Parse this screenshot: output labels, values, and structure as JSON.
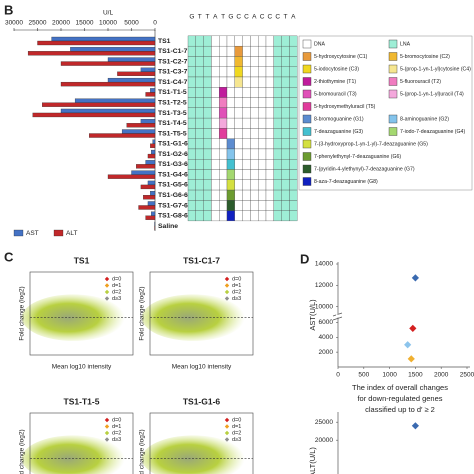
{
  "panel_b": {
    "label": "B",
    "type": "bar",
    "axis_title": "U/L",
    "xlim": [
      0,
      30000
    ],
    "xticks": [
      30000,
      25000,
      20000,
      15000,
      10000,
      5000,
      0
    ],
    "series": [
      {
        "name": "AST",
        "color": "#4472c4"
      },
      {
        "name": "ALT",
        "color": "#c0282a"
      }
    ],
    "rows": [
      {
        "name": "TS1",
        "ast": 22000,
        "alt": 25000,
        "modified_position": null,
        "modification_color": null
      },
      {
        "name": "TS1-C1-7",
        "ast": 18000,
        "alt": 27000,
        "modified_position": 7,
        "modification_color": "#e89a3c"
      },
      {
        "name": "TS1-C2-7",
        "ast": 10000,
        "alt": 20000,
        "modified_position": 7,
        "modification_color": "#f0b830"
      },
      {
        "name": "TS1-C3-7",
        "ast": 3000,
        "alt": 8000,
        "modified_position": 7,
        "modification_color": "#f0d820"
      },
      {
        "name": "TS1-C4-7",
        "ast": 10000,
        "alt": 20000,
        "modified_position": 7,
        "modification_color": "#f6e690"
      },
      {
        "name": "TS1-T1-5",
        "ast": 1000,
        "alt": 2000,
        "modified_position": 5,
        "modification_color": "#c01c9c"
      },
      {
        "name": "TS1-T2-5",
        "ast": 17000,
        "alt": 24000,
        "modified_position": 5,
        "modification_color": "#f07cc0"
      },
      {
        "name": "TS1-T3-5",
        "ast": 20000,
        "alt": 26000,
        "modified_position": 5,
        "modification_color": "#e050b8"
      },
      {
        "name": "TS1-T4-5",
        "ast": 3000,
        "alt": 6000,
        "modified_position": 5,
        "modification_color": "#f4a8dc"
      },
      {
        "name": "TS1-T5-5",
        "ast": 7000,
        "alt": 14000,
        "modified_position": 5,
        "modification_color": "#e03c9c"
      },
      {
        "name": "TS1-G1-6",
        "ast": 500,
        "alt": 1000,
        "modified_position": 6,
        "modification_color": "#5c8cd0"
      },
      {
        "name": "TS1-G2-6",
        "ast": 800,
        "alt": 1500,
        "modified_position": 6,
        "modification_color": "#84c4ec"
      },
      {
        "name": "TS1-G3-6",
        "ast": 2000,
        "alt": 4000,
        "modified_position": 6,
        "modification_color": "#44c0d0"
      },
      {
        "name": "TS1-G4-6",
        "ast": 5000,
        "alt": 10000,
        "modified_position": 6,
        "modification_color": "#a4d870"
      },
      {
        "name": "TS1-G5-6",
        "ast": 1500,
        "alt": 3000,
        "modified_position": 6,
        "modification_color": "#d4e040"
      },
      {
        "name": "TS1-G6-6",
        "ast": 1000,
        "alt": 2500,
        "modified_position": 6,
        "modification_color": "#6c9c30"
      },
      {
        "name": "TS1-G7-6",
        "ast": 1500,
        "alt": 3500,
        "modified_position": 6,
        "modification_color": "#2c5c2c"
      },
      {
        "name": "TS1-G8-6",
        "ast": 800,
        "alt": 2000,
        "modified_position": 6,
        "modification_color": "#1020c0"
      },
      {
        "name": "Saline",
        "ast": 100,
        "alt": 100,
        "modified_position": null,
        "modification_color": null
      }
    ],
    "sequence": [
      "G",
      "T",
      "T",
      "A",
      "T",
      "G",
      "C",
      "C",
      "A",
      "C",
      "C",
      "C",
      "T",
      "A"
    ],
    "lna_positions": [
      1,
      2,
      3,
      12,
      13,
      14
    ],
    "dna_color": "#ffffff",
    "lna_color": "#9eeed6",
    "legend": [
      {
        "name": "DNA",
        "color": "#ffffff"
      },
      {
        "name": "LNA",
        "color": "#9eeed6"
      },
      {
        "name": "5-hydroxycytosine (C1)",
        "color": "#e89a3c"
      },
      {
        "name": "5-bromocytosine (C2)",
        "color": "#f0b830"
      },
      {
        "name": "5-iodocytosine (C3)",
        "color": "#f0d820"
      },
      {
        "name": "5-(prop-1-yn-1-yl)cytosine (C4)",
        "color": "#f6e690"
      },
      {
        "name": "2-thiothymine (T1)",
        "color": "#c01c9c"
      },
      {
        "name": "5-fluorouracil (T2)",
        "color": "#f07cc0"
      },
      {
        "name": "5-bromouracil (T3)",
        "color": "#e050b8"
      },
      {
        "name": "5-(prop-1-yn-1-yl)uracil (T4)",
        "color": "#f4a8dc"
      },
      {
        "name": "5-hydroxymethyluracil (T5)",
        "color": "#e03c9c"
      },
      {
        "name": "8-bromoguanine (G1)",
        "color": "#5c8cd0"
      },
      {
        "name": "8-aminoguanine (G2)",
        "color": "#84c4ec"
      },
      {
        "name": "7-deazaguanine (G3)",
        "color": "#44c0d0"
      },
      {
        "name": "7-iodo-7-deazaguanine (G4)",
        "color": "#a4d870"
      },
      {
        "name": "7-(3-hydroxyprop-1-yn-1-yl)-7-deazaguanine (G5)",
        "color": "#d4e040"
      },
      {
        "name": "7-phenylethynyl-7-deazaguanine (G6)",
        "color": "#6c9c30"
      },
      {
        "name": "7-(pyridin-4-ylethynyl)-7-deazaguanine (G7)",
        "color": "#2c5c2c"
      },
      {
        "name": "8-aza-7-deazaguanine (G8)",
        "color": "#1020c0"
      }
    ]
  },
  "panel_c": {
    "label": "C",
    "type": "scatter",
    "x_label": "Mean log10 intensity",
    "y_label": "Fold change (log2)",
    "y_label_cropped": "old change (log2)",
    "legend": [
      {
        "name": "d=0",
        "color": "#d42020"
      },
      {
        "name": "d=1",
        "color": "#f0a020"
      },
      {
        "name": "d=2",
        "color": "#b8d040"
      },
      {
        "name": "d≥3",
        "color": "#909090"
      }
    ],
    "plots": [
      {
        "title": "TS1"
      },
      {
        "title": "TS1-C1-7"
      },
      {
        "title": "TS1-T1-5"
      },
      {
        "title": "TS1-G1-6"
      }
    ]
  },
  "panel_d": {
    "label": "D",
    "type": "scatter",
    "x_title": [
      "The index of overall changes",
      "for down-regulated genes",
      "classified up to d′ ≥ 2"
    ],
    "xlim": [
      0,
      2500
    ],
    "xticks": [
      0,
      500,
      1000,
      1500,
      2000,
      2500
    ],
    "ast": {
      "y_label": "AST(U/L)",
      "ylim_lower": [
        0,
        7000
      ],
      "ylim_upper": [
        9500,
        14000
      ],
      "yticks": [
        2000,
        4000,
        6000,
        10000,
        12000,
        14000
      ],
      "x": [
        1500,
        1450,
        1350,
        1420
      ],
      "values": [
        12700,
        5200,
        3000,
        1100
      ],
      "colors": [
        "#3a6ab0",
        "#d42020",
        "#8cc4ec",
        "#f0b030"
      ]
    },
    "alt": {
      "y_label": "ALT(U/L)",
      "ylim": [
        17000,
        27000
      ],
      "yticks": [
        20000,
        25000
      ],
      "x": [
        1500
      ],
      "values": [
        24000
      ],
      "colors": [
        "#3a6ab0"
      ]
    }
  }
}
